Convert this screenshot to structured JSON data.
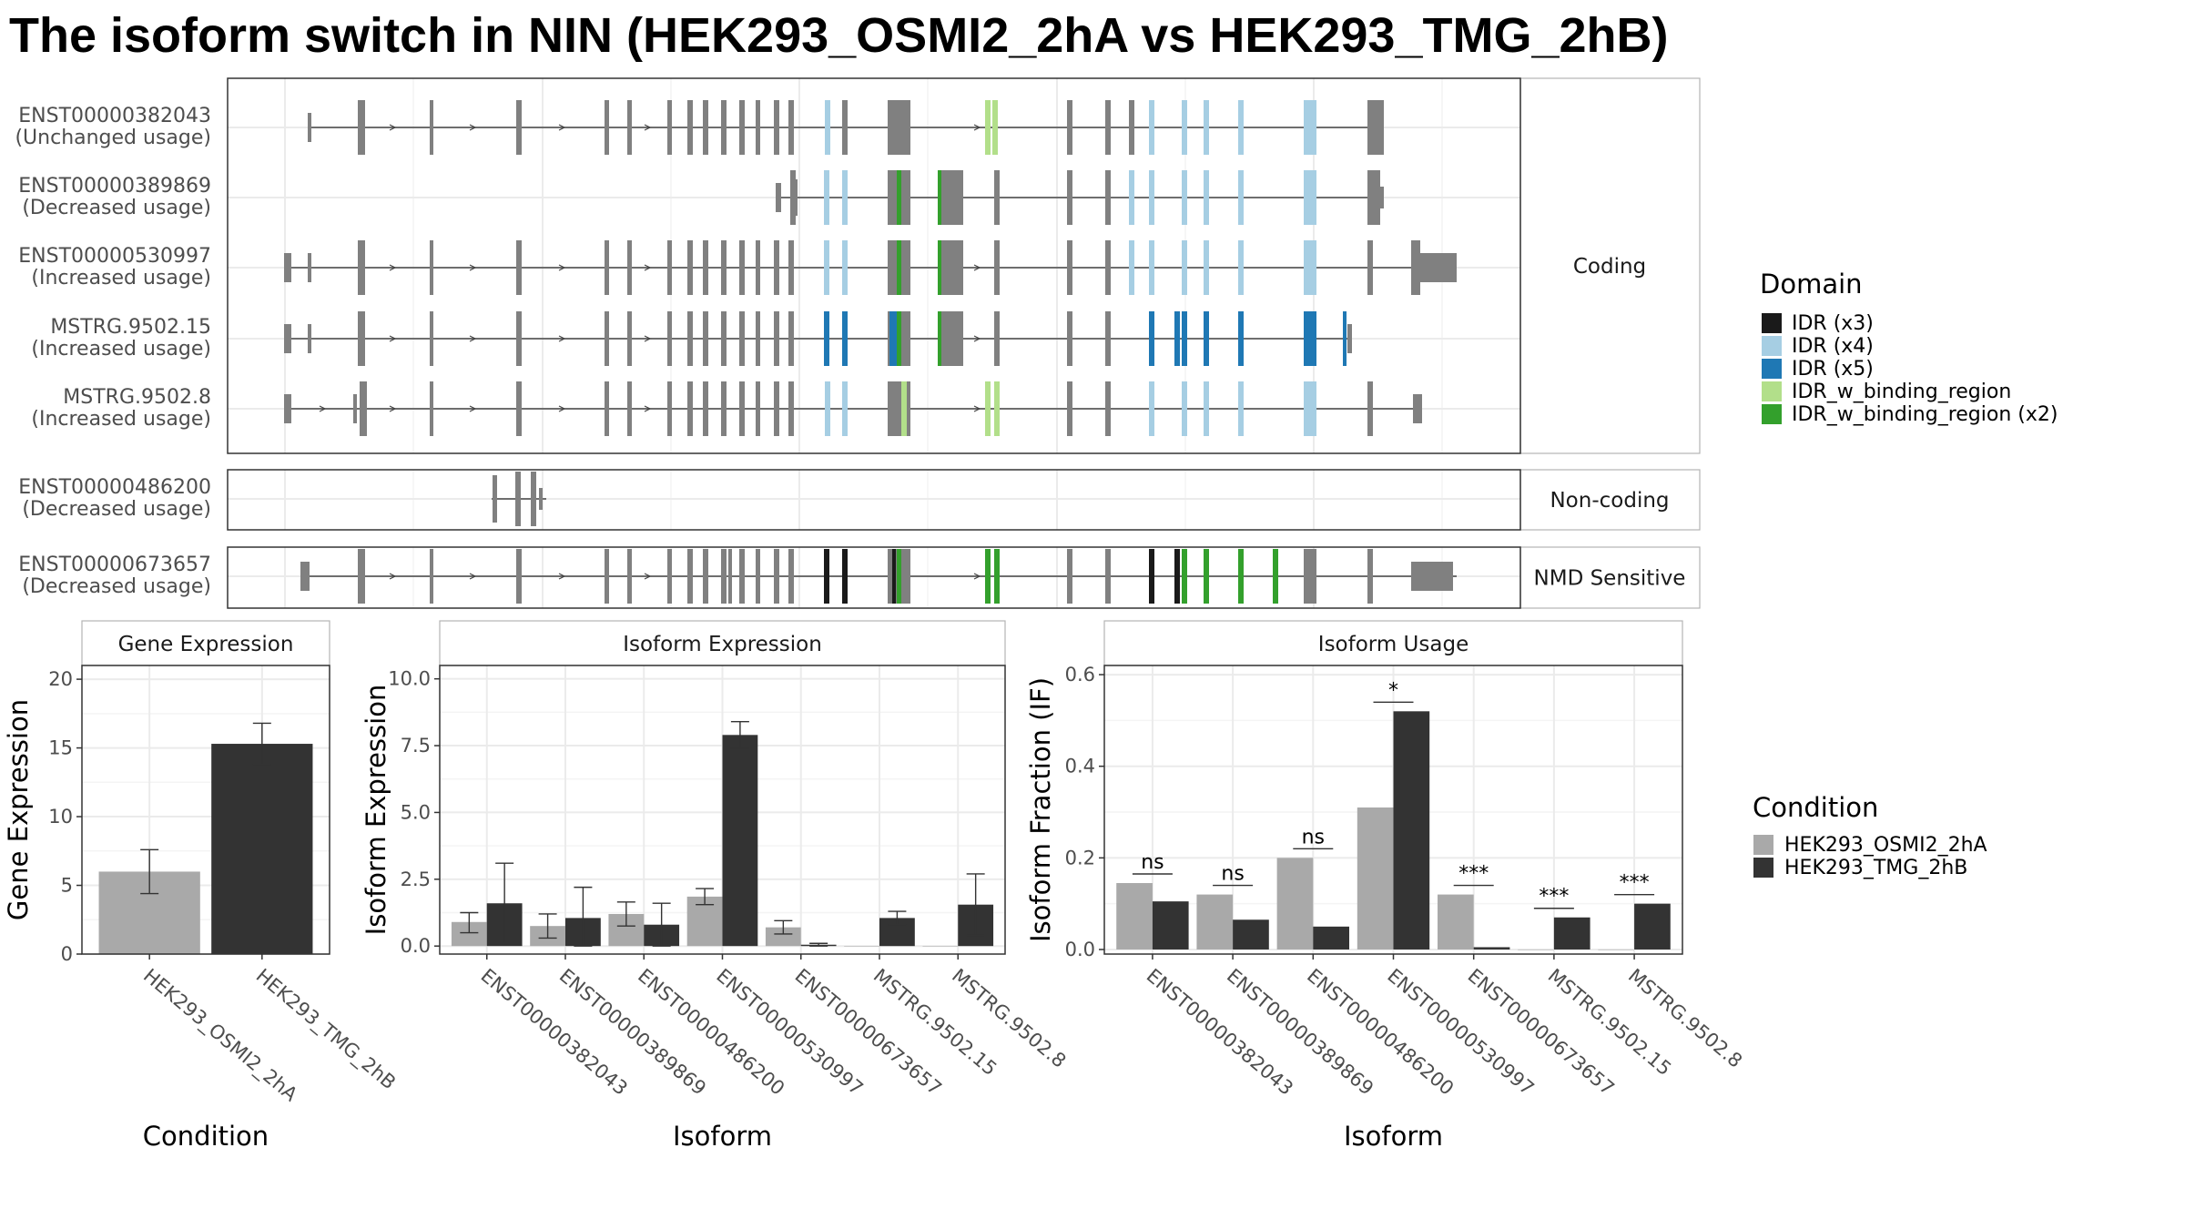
{
  "title": "The isoform switch in NIN (HEK293_OSMI2_2hA vs HEK293_TMG_2hB)",
  "structure": {
    "rows": [
      {
        "id": "ENST00000382043",
        "usage": "(Unchanged usage)"
      },
      {
        "id": "ENST00000389869",
        "usage": "(Decreased usage)"
      },
      {
        "id": "ENST00000530997",
        "usage": "(Increased usage)"
      },
      {
        "id": "MSTRG.9502.15",
        "usage": "(Increased usage)"
      },
      {
        "id": "MSTRG.9502.8",
        "usage": "(Increased usage)"
      },
      {
        "id": "ENST00000486200",
        "usage": "(Decreased usage)"
      },
      {
        "id": "ENST00000673657",
        "usage": "(Decreased usage)"
      }
    ],
    "groups": [
      "Coding",
      "Non-coding",
      "NMD Sensitive"
    ]
  },
  "domain_legend": {
    "title": "Domain",
    "items": [
      {
        "label": "IDR (x3)",
        "color": "#1a1a1a"
      },
      {
        "label": "IDR (x4)",
        "color": "#a6cee3"
      },
      {
        "label": "IDR (x5)",
        "color": "#1f78b4"
      },
      {
        "label": "IDR_w_binding_region",
        "color": "#b2df8a"
      },
      {
        "label": "IDR_w_binding_region (x2)",
        "color": "#33a02c"
      }
    ]
  },
  "condition_legend": {
    "title": "Condition",
    "items": [
      {
        "label": "HEK293_OSMI2_2hA",
        "color": "#a9a9a9"
      },
      {
        "label": "HEK293_TMG_2hB",
        "color": "#333333"
      }
    ]
  },
  "chart_data": [
    {
      "type": "bar",
      "panel": "Gene Expression",
      "xlabel": "Condition",
      "ylabel": "Gene Expression",
      "ylim": [
        0,
        21
      ],
      "yticks": [
        0,
        5,
        10,
        15,
        20
      ],
      "categories": [
        "HEK293_OSMI2_2hA",
        "HEK293_TMG_2hB"
      ],
      "values": [
        6.0,
        15.3
      ],
      "err_low": [
        4.4,
        13.8
      ],
      "err_high": [
        7.6,
        16.8
      ],
      "colors": [
        "#a9a9a9",
        "#333333"
      ]
    },
    {
      "type": "bar",
      "panel": "Isoform Expression",
      "xlabel": "Isoform",
      "ylabel": "Isoform Expression",
      "ylim": [
        -0.3,
        10.5
      ],
      "yticks": [
        "0.0",
        "2.5",
        "5.0",
        "7.5",
        "10.0"
      ],
      "categories": [
        "ENST00000382043",
        "ENST00000389869",
        "ENST00000486200",
        "ENST00000530997",
        "ENST00000673657",
        "MSTRG.9502.15",
        "MSTRG.9502.8"
      ],
      "series": [
        {
          "name": "HEK293_OSMI2_2hA",
          "color": "#a9a9a9",
          "values": [
            0.9,
            0.75,
            1.2,
            1.85,
            0.7,
            0.0,
            0.0
          ],
          "err_low": [
            0.5,
            0.3,
            0.75,
            1.55,
            0.45,
            0.0,
            0.0
          ],
          "err_high": [
            1.25,
            1.2,
            1.65,
            2.15,
            0.95,
            0.0,
            0.0
          ]
        },
        {
          "name": "HEK293_TMG_2hB",
          "color": "#333333",
          "values": [
            1.6,
            1.05,
            0.8,
            7.9,
            0.05,
            1.05,
            1.55
          ],
          "err_low": [
            0.1,
            0.0,
            0.0,
            7.4,
            0.0,
            0.8,
            0.4
          ],
          "err_high": [
            3.1,
            2.2,
            1.6,
            8.4,
            0.1,
            1.3,
            2.7
          ]
        }
      ]
    },
    {
      "type": "bar",
      "panel": "Isoform Usage",
      "xlabel": "Isoform",
      "ylabel": "Isoform Fraction (IF)",
      "ylim": [
        -0.01,
        0.62
      ],
      "yticks": [
        "0.0",
        "0.2",
        "0.4",
        "0.6"
      ],
      "categories": [
        "ENST00000382043",
        "ENST00000389869",
        "ENST00000486200",
        "ENST00000530997",
        "ENST00000673657",
        "MSTRG.9502.15",
        "MSTRG.9502.8"
      ],
      "series": [
        {
          "name": "HEK293_OSMI2_2hA",
          "color": "#a9a9a9",
          "values": [
            0.145,
            0.12,
            0.2,
            0.31,
            0.12,
            0.0,
            0.0
          ]
        },
        {
          "name": "HEK293_TMG_2hB",
          "color": "#333333",
          "values": [
            0.105,
            0.065,
            0.05,
            0.52,
            0.005,
            0.07,
            0.1
          ]
        }
      ],
      "significance": [
        "ns",
        "ns",
        "ns",
        "*",
        "***",
        "***",
        "***"
      ]
    }
  ]
}
